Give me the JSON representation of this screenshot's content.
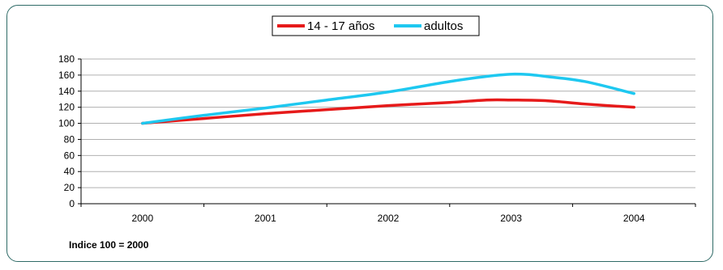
{
  "chart_data": {
    "type": "line",
    "title": "",
    "xlabel": "",
    "ylabel": "",
    "categories": [
      "2000",
      "2001",
      "2002",
      "2003",
      "2004"
    ],
    "ylim": [
      0,
      180
    ],
    "yticks": [
      "0",
      "20",
      "40",
      "60",
      "80",
      "100",
      "120",
      "140",
      "160",
      "180"
    ],
    "grid": true,
    "legend_position": "top-center",
    "series": [
      {
        "name": "14 - 17 años",
        "color": "#e61a1a",
        "x": [
          0,
          0.5,
          1,
          1.5,
          2,
          2.5,
          2.8,
          3,
          3.3,
          3.6,
          4
        ],
        "values": [
          100,
          106,
          112,
          117,
          122,
          126,
          129,
          129,
          128,
          124,
          120
        ]
      },
      {
        "name": "adultos",
        "color": "#1ec8f0",
        "x": [
          0,
          0.5,
          1,
          1.5,
          2,
          2.5,
          2.9,
          3.1,
          3.3,
          3.6,
          4
        ],
        "values": [
          100,
          110,
          119,
          129,
          139,
          152,
          160,
          161,
          158,
          152,
          137
        ]
      }
    ],
    "note": "Indice 100 = 2000"
  }
}
